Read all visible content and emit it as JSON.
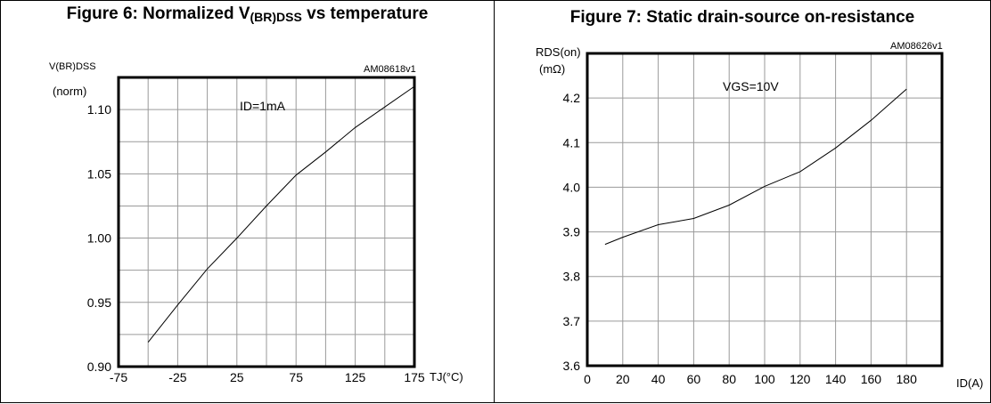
{
  "chart_data": [
    {
      "type": "line",
      "title_prefix": "Figure 6: Normalized V",
      "title_sub": "(BR)DSS",
      "title_suffix": " vs temperature",
      "code": "AM08618v1",
      "ylabel_line1": "V(BR)DSS",
      "ylabel_line2": "(norm)",
      "xlabel": "TJ(°C)",
      "annotation": "ID=1mA",
      "x_ticks": [
        "-75",
        "-25",
        "25",
        "75",
        "125",
        "175"
      ],
      "y_ticks": [
        "0.90",
        "0.95",
        "1.00",
        "1.05",
        "1.10"
      ],
      "xlim": [
        -75,
        175
      ],
      "ylim": [
        0.9,
        1.125
      ],
      "grid": true,
      "series": [
        {
          "x": [
            -50,
            -25,
            0,
            25,
            50,
            75,
            100,
            125,
            150,
            175
          ],
          "y": [
            0.919,
            0.948,
            0.976,
            1.0,
            1.025,
            1.049,
            1.067,
            1.086,
            1.102,
            1.118
          ]
        }
      ]
    },
    {
      "type": "line",
      "title": "Figure 7: Static drain-source on-resistance",
      "code": "AM08626v1",
      "ylabel_line1": "RDS(on)",
      "ylabel_line2": "(mΩ)",
      "xlabel": "ID(A)",
      "annotation": "VGS=10V",
      "x_ticks": [
        "0",
        "20",
        "40",
        "60",
        "80",
        "100",
        "120",
        "140",
        "160",
        "180"
      ],
      "y_ticks": [
        "3.6",
        "3.7",
        "3.8",
        "3.9",
        "4.0",
        "4.1",
        "4.2"
      ],
      "xlim": [
        0,
        200
      ],
      "ylim": [
        3.6,
        4.3
      ],
      "grid": true,
      "series": [
        {
          "x": [
            10,
            20,
            40,
            60,
            80,
            100,
            120,
            140,
            160,
            180
          ],
          "y": [
            3.872,
            3.888,
            3.916,
            3.93,
            3.96,
            4.002,
            4.035,
            4.088,
            4.15,
            4.22
          ]
        }
      ]
    }
  ]
}
